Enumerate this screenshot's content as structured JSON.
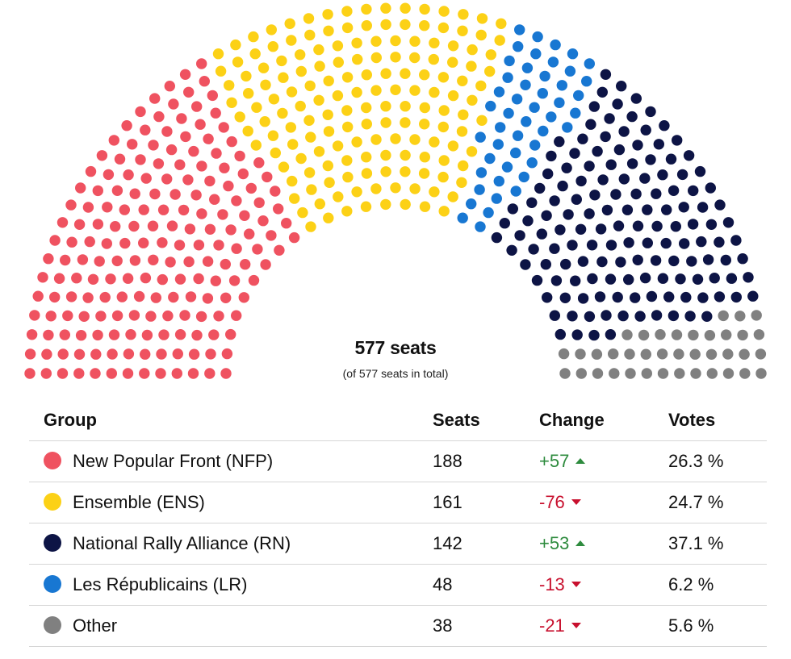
{
  "chart_data": {
    "type": "parliament",
    "total_label": "577 seats",
    "total_sublabel": "(of 577 seats in total)",
    "total_seats": 577,
    "columns": [
      "Group",
      "Seats",
      "Change",
      "Votes"
    ],
    "groups": [
      {
        "name": "New Popular Front (NFP)",
        "seats": 188,
        "change": "+57",
        "direction": "up",
        "votes": "26.3 %",
        "color": "#ef5260"
      },
      {
        "name": "Ensemble (ENS)",
        "seats": 161,
        "change": "-76",
        "direction": "down",
        "votes": "24.7 %",
        "color": "#fcd116"
      },
      {
        "name": "Les Républicains (LR)",
        "seats": 48,
        "change": "-13",
        "direction": "down",
        "votes": "6.2 %",
        "color": "#1877d2"
      },
      {
        "name": "National Rally Alliance (RN)",
        "seats": 142,
        "change": "+53",
        "direction": "up",
        "votes": "37.1 %",
        "color": "#0d1445"
      },
      {
        "name": "Other",
        "seats": 38,
        "change": "-21",
        "direction": "down",
        "votes": "5.6 %",
        "color": "#808080"
      }
    ],
    "table_order": [
      0,
      1,
      3,
      2,
      4
    ]
  }
}
